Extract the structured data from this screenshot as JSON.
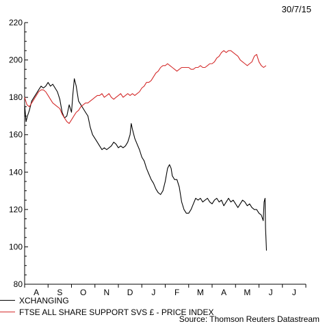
{
  "date_label": "30/7/15",
  "source": "Source: Thomson Reuters Datastream",
  "chart_data": {
    "type": "line",
    "title": "",
    "ylim": [
      80,
      220
    ],
    "yticks": [
      80,
      100,
      120,
      140,
      160,
      180,
      200,
      220
    ],
    "months": [
      "A",
      "S",
      "O",
      "N",
      "D",
      "J",
      "F",
      "M",
      "A",
      "M",
      "J",
      "J"
    ],
    "x_domain": [
      0,
      12
    ],
    "legend_position": "bottom-left",
    "grid": false,
    "series": [
      {
        "name": "XCHANGING",
        "color": "#000000",
        "points": [
          [
            0.0,
            176
          ],
          [
            0.06,
            167
          ],
          [
            0.12,
            170
          ],
          [
            0.2,
            173
          ],
          [
            0.3,
            178
          ],
          [
            0.4,
            180
          ],
          [
            0.5,
            182
          ],
          [
            0.6,
            184
          ],
          [
            0.7,
            186
          ],
          [
            0.8,
            185
          ],
          [
            0.9,
            186
          ],
          [
            1.0,
            188
          ],
          [
            1.1,
            186
          ],
          [
            1.2,
            187
          ],
          [
            1.3,
            185
          ],
          [
            1.4,
            183
          ],
          [
            1.5,
            179
          ],
          [
            1.6,
            172
          ],
          [
            1.7,
            169
          ],
          [
            1.8,
            170
          ],
          [
            1.9,
            176
          ],
          [
            2.0,
            172
          ],
          [
            2.06,
            182
          ],
          [
            2.12,
            190
          ],
          [
            2.2,
            186
          ],
          [
            2.3,
            178
          ],
          [
            2.4,
            176
          ],
          [
            2.5,
            174
          ],
          [
            2.6,
            172
          ],
          [
            2.7,
            170
          ],
          [
            2.8,
            164
          ],
          [
            2.9,
            160
          ],
          [
            3.0,
            158
          ],
          [
            3.1,
            156
          ],
          [
            3.2,
            154
          ],
          [
            3.3,
            152
          ],
          [
            3.4,
            153
          ],
          [
            3.5,
            152
          ],
          [
            3.6,
            153
          ],
          [
            3.7,
            154
          ],
          [
            3.8,
            156
          ],
          [
            3.9,
            155
          ],
          [
            4.0,
            153
          ],
          [
            4.1,
            154
          ],
          [
            4.2,
            153
          ],
          [
            4.3,
            154
          ],
          [
            4.4,
            156
          ],
          [
            4.5,
            160
          ],
          [
            4.55,
            166
          ],
          [
            4.6,
            163
          ],
          [
            4.7,
            158
          ],
          [
            4.8,
            155
          ],
          [
            4.9,
            152
          ],
          [
            5.0,
            148
          ],
          [
            5.1,
            146
          ],
          [
            5.2,
            142
          ],
          [
            5.3,
            139
          ],
          [
            5.4,
            136
          ],
          [
            5.5,
            134
          ],
          [
            5.6,
            131
          ],
          [
            5.7,
            129
          ],
          [
            5.8,
            128
          ],
          [
            5.9,
            130
          ],
          [
            6.0,
            135
          ],
          [
            6.1,
            142
          ],
          [
            6.18,
            144
          ],
          [
            6.25,
            142
          ],
          [
            6.3,
            138
          ],
          [
            6.4,
            136
          ],
          [
            6.5,
            136
          ],
          [
            6.6,
            132
          ],
          [
            6.7,
            124
          ],
          [
            6.8,
            120
          ],
          [
            6.9,
            118
          ],
          [
            7.0,
            118
          ],
          [
            7.1,
            120
          ],
          [
            7.2,
            123
          ],
          [
            7.3,
            126
          ],
          [
            7.4,
            125
          ],
          [
            7.5,
            126
          ],
          [
            7.6,
            124
          ],
          [
            7.7,
            125
          ],
          [
            7.8,
            126
          ],
          [
            7.9,
            124
          ],
          [
            8.0,
            123
          ],
          [
            8.1,
            125
          ],
          [
            8.2,
            126
          ],
          [
            8.3,
            124
          ],
          [
            8.4,
            125
          ],
          [
            8.5,
            122
          ],
          [
            8.6,
            124
          ],
          [
            8.7,
            126
          ],
          [
            8.8,
            124
          ],
          [
            8.9,
            125
          ],
          [
            9.0,
            123
          ],
          [
            9.1,
            121
          ],
          [
            9.2,
            123
          ],
          [
            9.3,
            125
          ],
          [
            9.4,
            124
          ],
          [
            9.5,
            122
          ],
          [
            9.6,
            123
          ],
          [
            9.7,
            121
          ],
          [
            9.8,
            120
          ],
          [
            9.9,
            120
          ],
          [
            10.0,
            118
          ],
          [
            10.1,
            117
          ],
          [
            10.18,
            114
          ],
          [
            10.22,
            124
          ],
          [
            10.26,
            126
          ],
          [
            10.28,
            110
          ],
          [
            10.32,
            98
          ]
        ]
      },
      {
        "name": "FTSE ALL SHARE SUPPORT SVS £ - PRICE INDEX",
        "color": "#d42a2a",
        "points": [
          [
            0.0,
            180
          ],
          [
            0.1,
            176
          ],
          [
            0.2,
            175
          ],
          [
            0.3,
            177
          ],
          [
            0.4,
            179
          ],
          [
            0.5,
            181
          ],
          [
            0.6,
            183
          ],
          [
            0.7,
            184
          ],
          [
            0.8,
            184
          ],
          [
            0.9,
            183
          ],
          [
            1.0,
            181
          ],
          [
            1.1,
            179
          ],
          [
            1.2,
            177
          ],
          [
            1.3,
            176
          ],
          [
            1.4,
            175
          ],
          [
            1.5,
            174
          ],
          [
            1.6,
            171
          ],
          [
            1.7,
            169
          ],
          [
            1.8,
            167
          ],
          [
            1.9,
            166
          ],
          [
            2.0,
            168
          ],
          [
            2.1,
            170
          ],
          [
            2.2,
            172
          ],
          [
            2.3,
            173
          ],
          [
            2.4,
            175
          ],
          [
            2.5,
            176
          ],
          [
            2.6,
            177
          ],
          [
            2.7,
            177
          ],
          [
            2.8,
            178
          ],
          [
            2.9,
            179
          ],
          [
            3.0,
            180
          ],
          [
            3.1,
            181
          ],
          [
            3.2,
            181
          ],
          [
            3.3,
            182
          ],
          [
            3.4,
            180
          ],
          [
            3.5,
            181
          ],
          [
            3.6,
            182
          ],
          [
            3.7,
            180
          ],
          [
            3.8,
            179
          ],
          [
            3.9,
            180
          ],
          [
            4.0,
            181
          ],
          [
            4.1,
            182
          ],
          [
            4.2,
            180
          ],
          [
            4.3,
            181
          ],
          [
            4.4,
            182
          ],
          [
            4.5,
            181
          ],
          [
            4.6,
            182
          ],
          [
            4.7,
            181
          ],
          [
            4.8,
            182
          ],
          [
            4.9,
            183
          ],
          [
            5.0,
            185
          ],
          [
            5.1,
            186
          ],
          [
            5.2,
            188
          ],
          [
            5.3,
            188
          ],
          [
            5.4,
            189
          ],
          [
            5.5,
            191
          ],
          [
            5.6,
            193
          ],
          [
            5.7,
            194
          ],
          [
            5.8,
            196
          ],
          [
            5.9,
            197
          ],
          [
            6.0,
            197
          ],
          [
            6.1,
            198
          ],
          [
            6.2,
            197
          ],
          [
            6.3,
            196
          ],
          [
            6.4,
            195
          ],
          [
            6.5,
            194
          ],
          [
            6.6,
            195
          ],
          [
            6.7,
            196
          ],
          [
            6.8,
            196
          ],
          [
            6.9,
            196
          ],
          [
            7.0,
            196
          ],
          [
            7.1,
            195
          ],
          [
            7.2,
            195
          ],
          [
            7.3,
            196
          ],
          [
            7.4,
            196
          ],
          [
            7.5,
            197
          ],
          [
            7.6,
            196
          ],
          [
            7.7,
            196
          ],
          [
            7.8,
            197
          ],
          [
            7.9,
            198
          ],
          [
            8.0,
            198
          ],
          [
            8.1,
            199
          ],
          [
            8.2,
            201
          ],
          [
            8.3,
            202
          ],
          [
            8.4,
            204
          ],
          [
            8.5,
            205
          ],
          [
            8.6,
            204
          ],
          [
            8.7,
            205
          ],
          [
            8.8,
            205
          ],
          [
            8.9,
            204
          ],
          [
            9.0,
            203
          ],
          [
            9.1,
            202
          ],
          [
            9.2,
            200
          ],
          [
            9.3,
            199
          ],
          [
            9.4,
            198
          ],
          [
            9.5,
            197
          ],
          [
            9.6,
            198
          ],
          [
            9.7,
            199
          ],
          [
            9.8,
            202
          ],
          [
            9.9,
            203
          ],
          [
            10.0,
            199
          ],
          [
            10.1,
            197
          ],
          [
            10.2,
            196
          ],
          [
            10.3,
            197
          ]
        ]
      }
    ]
  }
}
